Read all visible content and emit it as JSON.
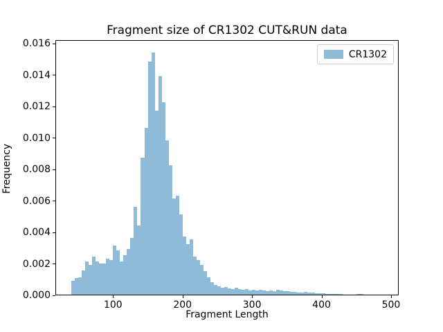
{
  "figure": {
    "title": "Fragment size of CR1302 CUT&RUN data",
    "xlabel": "Fragment Length",
    "ylabel": "Frequency",
    "legend": {
      "label": "CR1302"
    },
    "colors": {
      "bar": "#8fbbd9",
      "axis": "#000000",
      "legend_border": "#cccccc",
      "background": "#ffffff"
    }
  },
  "chart_data": {
    "type": "bar",
    "subtype": "histogram",
    "title": "Fragment size of CR1302 CUT&RUN data",
    "xlabel": "Fragment Length",
    "ylabel": "Frequency",
    "legend_entries": [
      "CR1302"
    ],
    "legend_position": "upper right",
    "grid": false,
    "xlim": [
      17,
      511
    ],
    "ylim": [
      0,
      0.01622
    ],
    "xticks": [
      100,
      200,
      300,
      400,
      500
    ],
    "yticks": [
      0.0,
      0.002,
      0.004,
      0.006,
      0.008,
      0.01,
      0.012,
      0.014,
      0.016
    ],
    "ytick_decimals": 3,
    "bin_width": 5,
    "bin_start": 40,
    "bin_starts_note": "bins are contiguous: 40-45, 45-50, ... 455-460",
    "frequencies": [
      0.0009,
      0.00105,
      0.0011,
      0.00155,
      0.0021,
      0.0019,
      0.0024,
      0.0021,
      0.002,
      0.002,
      0.0023,
      0.0022,
      0.0031,
      0.0028,
      0.0021,
      0.0025,
      0.0029,
      0.0036,
      0.0056,
      0.0044,
      0.0087,
      0.0106,
      0.0148,
      0.0154,
      0.0117,
      0.0139,
      0.0122,
      0.0098,
      0.0082,
      0.0061,
      0.0063,
      0.0051,
      0.0037,
      0.0032,
      0.0035,
      0.0024,
      0.0022,
      0.0019,
      0.0015,
      0.0011,
      0.0008,
      0.00062,
      0.00053,
      0.00044,
      0.00048,
      0.0004,
      0.00035,
      0.00044,
      0.00035,
      0.0003,
      0.00035,
      0.00026,
      0.0003,
      0.00026,
      0.0003,
      0.00026,
      0.00022,
      0.00026,
      0.00022,
      0.0003,
      0.00026,
      0.00022,
      0.00022,
      0.00018,
      0.00018,
      0.00013,
      0.00013,
      0.00018,
      0.00013,
      0.00013,
      9e-05,
      9e-05,
      9e-05,
      5e-05,
      5e-05,
      5e-05,
      4e-05,
      4e-05,
      0,
      0,
      0,
      0,
      4e-05,
      4e-05
    ]
  }
}
